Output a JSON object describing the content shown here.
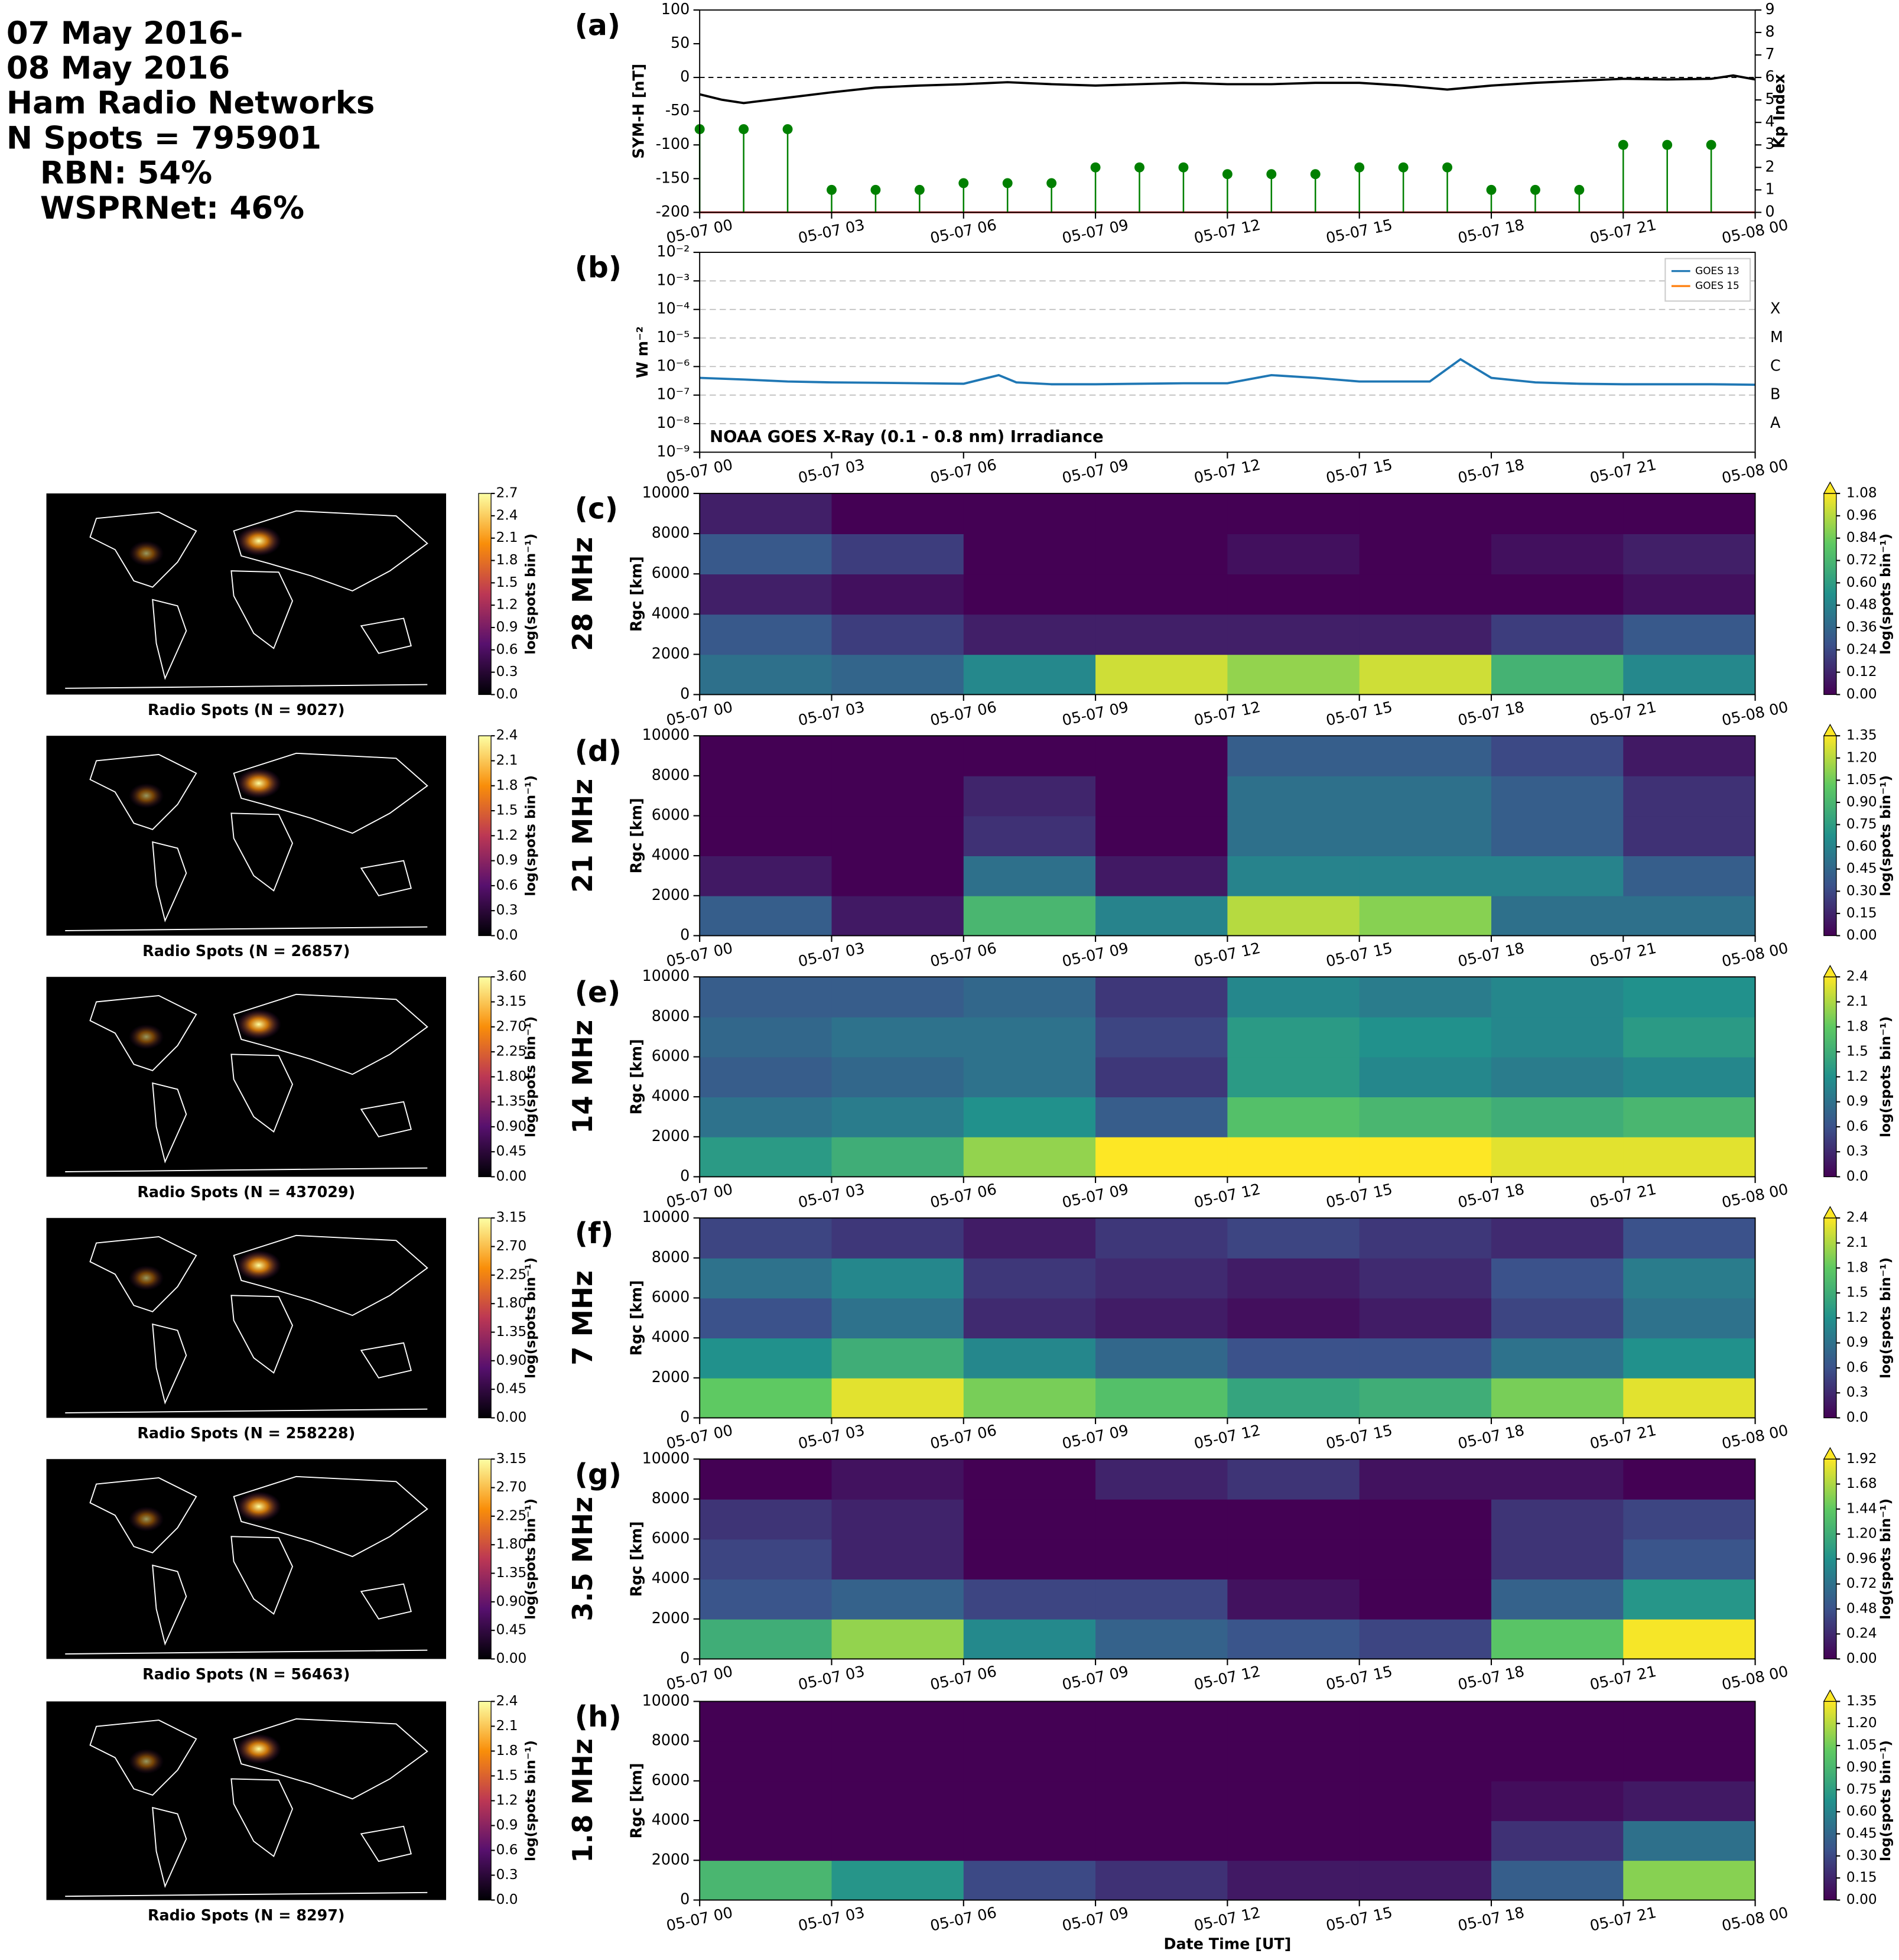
{
  "header": {
    "lines": [
      "07 May 2016-",
      "08 May 2016",
      "Ham Radio Networks",
      "N Spots = 795901",
      "RBN: 54%",
      "WSPRNet: 46%"
    ]
  },
  "time_axis": {
    "xlim": [
      0,
      24
    ],
    "xlabel": "Date Time [UT]",
    "xticks": [
      {
        "value": 0,
        "label": "05-07 00"
      },
      {
        "value": 3,
        "label": "05-07 03"
      },
      {
        "value": 6,
        "label": "05-07 06"
      },
      {
        "value": 9,
        "label": "05-07 09"
      },
      {
        "value": 12,
        "label": "05-07 12"
      },
      {
        "value": 15,
        "label": "05-07 15"
      },
      {
        "value": 18,
        "label": "05-07 18"
      },
      {
        "value": 21,
        "label": "05-07 21"
      },
      {
        "value": 24,
        "label": "05-08 00"
      }
    ]
  },
  "chart_data": [
    {
      "type": "line",
      "label": "(a)",
      "ylabel": "SYM-H [nT]",
      "y2label": "Kp Index",
      "ylim": [
        -200,
        100
      ],
      "yticks": [
        -200,
        -150,
        -100,
        -50,
        0,
        50,
        100
      ],
      "hline": 0,
      "y2lim": [
        0,
        9
      ],
      "y2ticks": [
        0,
        1,
        2,
        3,
        4,
        5,
        6,
        7,
        8,
        9
      ],
      "y2tick_colors": [
        "green",
        "green",
        "green",
        "green",
        "orange",
        "red",
        "red",
        "red",
        "red",
        "red"
      ],
      "series": [
        {
          "color": "#000000",
          "x": [
            0,
            0.5,
            1,
            2,
            3,
            4,
            5,
            6,
            7,
            8,
            9,
            10,
            11,
            12,
            13,
            14,
            15,
            16,
            17,
            18,
            19,
            20,
            21,
            22,
            23,
            23.5,
            24
          ],
          "values": [
            -25,
            -33,
            -38,
            -30,
            -22,
            -15,
            -12,
            -10,
            -7,
            -10,
            -12,
            -10,
            -8,
            -10,
            -10,
            -8,
            -8,
            -12,
            -18,
            -12,
            -8,
            -5,
            -2,
            -3,
            -2,
            3,
            -3
          ]
        },
        {
          "color": "#008000",
          "axis": "y2",
          "style": "stem",
          "x": [
            0,
            1,
            2,
            3,
            4,
            5,
            6,
            7,
            8,
            9,
            10,
            11,
            12,
            13,
            14,
            15,
            16,
            17,
            18,
            19,
            20,
            21,
            22,
            23
          ],
          "values": [
            3.7,
            3.7,
            3.7,
            1,
            1,
            1,
            1.3,
            1.3,
            1.3,
            2,
            2,
            2,
            1.7,
            1.7,
            1.7,
            2,
            2,
            2,
            1,
            1,
            1,
            3,
            3,
            3
          ]
        }
      ]
    },
    {
      "type": "line",
      "label": "(b)",
      "ylabel": "W m⁻²",
      "log": true,
      "grid": true,
      "legend": "upper right",
      "annotation": "NOAA GOES X-Ray (0.1 - 0.8 nm) Irradiance",
      "ylim": [
        1e-09,
        0.01
      ],
      "yticks": [
        {
          "value": 1e-09,
          "label": "10⁻⁹"
        },
        {
          "value": 1e-08,
          "label": "10⁻⁸"
        },
        {
          "value": 1e-07,
          "label": "10⁻⁷"
        },
        {
          "value": 1e-06,
          "label": "10⁻⁶"
        },
        {
          "value": 1e-05,
          "label": "10⁻⁵"
        },
        {
          "value": 0.0001,
          "label": "10⁻⁴"
        },
        {
          "value": 0.001,
          "label": "10⁻³"
        },
        {
          "value": 0.01,
          "label": "10⁻²"
        }
      ],
      "flare_classes": [
        {
          "value": 1e-08,
          "label": "A"
        },
        {
          "value": 1e-07,
          "label": "B"
        },
        {
          "value": 1e-06,
          "label": "C"
        },
        {
          "value": 1e-05,
          "label": "M"
        },
        {
          "value": 0.0001,
          "label": "X"
        }
      ],
      "series": [
        {
          "name": "GOES 13",
          "color": "#1f77b4",
          "x": [
            0,
            1,
            2,
            3,
            4,
            5,
            6,
            6.8,
            7.2,
            8,
            9,
            10,
            11,
            12,
            13,
            14,
            15,
            16,
            16.6,
            17.3,
            18,
            19,
            20,
            21,
            22,
            23,
            24
          ],
          "values": [
            4e-07,
            3.5e-07,
            3e-07,
            2.8e-07,
            2.7e-07,
            2.6e-07,
            2.5e-07,
            5e-07,
            2.8e-07,
            2.4e-07,
            2.4e-07,
            2.5e-07,
            2.6e-07,
            2.6e-07,
            5e-07,
            4e-07,
            3e-07,
            3e-07,
            3e-07,
            1.8e-06,
            4e-07,
            2.8e-07,
            2.5e-07,
            2.4e-07,
            2.4e-07,
            2.4e-07,
            2.3e-07
          ]
        },
        {
          "name": "GOES 15",
          "color": "#ff7f0e",
          "x": [
            0,
            1,
            2,
            3,
            4,
            5,
            6,
            6.8,
            7.2,
            8,
            9,
            10,
            11,
            12,
            13,
            14,
            15,
            16,
            16.6,
            17.3,
            18,
            19,
            20,
            21,
            22,
            23,
            24
          ],
          "values": [
            null,
            null,
            null,
            null,
            null,
            null,
            null,
            null,
            null,
            null,
            null,
            null,
            null,
            null,
            null,
            null,
            null,
            null,
            null,
            null,
            null,
            null,
            null,
            null,
            null,
            null,
            null
          ]
        }
      ]
    },
    {
      "type": "heatmap",
      "label": "(c)",
      "band": "28 MHz",
      "ylabel": "Rgc [km]",
      "ylim": [
        0,
        10000
      ],
      "yticks": [
        0,
        2000,
        4000,
        6000,
        8000,
        10000
      ],
      "xbins": [
        0,
        3,
        6,
        9,
        12,
        15,
        18,
        21,
        24
      ],
      "ybins": [
        0,
        2000,
        4000,
        6000,
        8000,
        10000
      ],
      "z": [
        [
          0.4,
          0.35,
          0.5,
          1.0,
          0.9,
          1.0,
          0.7,
          0.5
        ],
        [
          0.3,
          0.2,
          0.1,
          0.1,
          0.1,
          0.1,
          0.2,
          0.3
        ],
        [
          0.1,
          0.05,
          0,
          0,
          0,
          0,
          0,
          0.05
        ],
        [
          0.3,
          0.2,
          0,
          0,
          0.05,
          0,
          0.05,
          0.1
        ],
        [
          0.1,
          0,
          0,
          0,
          0,
          0,
          0,
          0
        ]
      ],
      "clim": [
        0,
        1.08
      ],
      "clabel": "log(spots bin⁻¹)",
      "cticks": [
        {
          "value": 0,
          "label": "0.00"
        },
        0.12,
        0.24,
        0.36,
        0.48,
        {
          "value": 0.6,
          "label": "0.60"
        },
        0.72,
        0.84,
        0.96,
        1.08
      ],
      "map": {
        "title": "Radio Spots (N = 9027)",
        "clim": [
          0,
          2.7
        ],
        "clabel": "log(spots bin⁻¹)",
        "cticks": [
          {
            "value": 0,
            "label": "0.0"
          },
          0.3,
          0.6,
          0.9,
          1.2,
          1.5,
          1.8,
          2.1,
          2.4,
          2.7
        ]
      }
    },
    {
      "type": "heatmap",
      "label": "(d)",
      "band": "21 MHz",
      "ylabel": "Rgc [km]",
      "ylim": [
        0,
        10000
      ],
      "yticks": [
        0,
        2000,
        4000,
        6000,
        8000,
        10000
      ],
      "xbins": [
        0,
        3,
        6,
        9,
        12,
        15,
        18,
        21,
        24
      ],
      "ybins": [
        0,
        2000,
        4000,
        6000,
        8000,
        10000
      ],
      "z": [
        [
          0.4,
          0.1,
          0.9,
          0.6,
          1.2,
          1.1,
          0.5,
          0.5
        ],
        [
          0.1,
          0,
          0.5,
          0.1,
          0.6,
          0.6,
          0.6,
          0.4
        ],
        [
          0,
          0,
          0.2,
          0,
          0.5,
          0.5,
          0.4,
          0.2
        ],
        [
          0,
          0,
          0.15,
          0,
          0.5,
          0.5,
          0.4,
          0.2
        ],
        [
          0,
          0,
          0,
          0,
          0.4,
          0.4,
          0.3,
          0.1
        ]
      ],
      "clim": [
        0,
        1.35
      ],
      "clabel": "log(spots bin⁻¹)",
      "cticks": [
        {
          "value": 0,
          "label": "0.00"
        },
        0.15,
        {
          "value": 0.3,
          "label": "0.30"
        },
        0.45,
        {
          "value": 0.6,
          "label": "0.60"
        },
        0.75,
        {
          "value": 0.9,
          "label": "0.90"
        },
        1.05,
        {
          "value": 1.2,
          "label": "1.20"
        },
        1.35
      ],
      "map": {
        "title": "Radio Spots (N = 26857)",
        "clim": [
          0,
          2.4
        ],
        "clabel": "log(spots bin⁻¹)",
        "cticks": [
          {
            "value": 0,
            "label": "0.0"
          },
          0.3,
          0.6,
          0.9,
          1.2,
          1.5,
          1.8,
          2.1,
          2.4
        ]
      }
    },
    {
      "type": "heatmap",
      "label": "(e)",
      "band": "14 MHz",
      "ylabel": "Rgc [km]",
      "ylim": [
        0,
        10000
      ],
      "yticks": [
        0,
        2000,
        4000,
        6000,
        8000,
        10000
      ],
      "xbins": [
        0,
        3,
        6,
        9,
        12,
        15,
        18,
        21,
        24
      ],
      "ybins": [
        0,
        2000,
        4000,
        6000,
        8000,
        10000
      ],
      "z": [
        [
          1.3,
          1.5,
          2.0,
          2.4,
          2.5,
          2.5,
          2.3,
          2.3
        ],
        [
          0.9,
          1.0,
          1.2,
          0.7,
          1.7,
          1.6,
          1.5,
          1.6
        ],
        [
          0.7,
          0.8,
          0.9,
          0.4,
          1.3,
          1.1,
          1.0,
          1.1
        ],
        [
          0.8,
          0.9,
          0.9,
          0.5,
          1.3,
          1.2,
          1.1,
          1.3
        ],
        [
          0.7,
          0.7,
          0.8,
          0.4,
          1.1,
          1.0,
          1.1,
          1.2
        ]
      ],
      "clim": [
        0,
        2.4
      ],
      "clabel": "log(spots bin⁻¹)",
      "cticks": [
        {
          "value": 0,
          "label": "0.0"
        },
        0.3,
        0.6,
        0.9,
        1.2,
        1.5,
        1.8,
        2.1,
        2.4
      ],
      "map": {
        "title": "Radio Spots (N = 437029)",
        "clim": [
          0,
          3.6
        ],
        "clabel": "log(spots bin⁻¹)",
        "cticks": [
          {
            "value": 0,
            "label": "0.00"
          },
          0.45,
          {
            "value": 0.9,
            "label": "0.90"
          },
          1.35,
          {
            "value": 1.8,
            "label": "1.80"
          },
          2.25,
          {
            "value": 2.7,
            "label": "2.70"
          },
          3.15,
          {
            "value": 3.6,
            "label": "3.60"
          }
        ]
      }
    },
    {
      "type": "heatmap",
      "label": "(f)",
      "band": "7 MHz",
      "ylabel": "Rgc [km]",
      "ylim": [
        0,
        10000
      ],
      "yticks": [
        0,
        2000,
        4000,
        6000,
        8000,
        10000
      ],
      "xbins": [
        0,
        3,
        6,
        9,
        12,
        15,
        18,
        21,
        24
      ],
      "ybins": [
        0,
        2000,
        4000,
        6000,
        8000,
        10000
      ],
      "z": [
        [
          1.8,
          2.3,
          1.9,
          1.7,
          1.4,
          1.5,
          1.9,
          2.3
        ],
        [
          1.2,
          1.5,
          1.1,
          0.8,
          0.6,
          0.6,
          0.9,
          1.2
        ],
        [
          0.6,
          0.9,
          0.3,
          0.2,
          0.1,
          0.2,
          0.5,
          0.9
        ],
        [
          0.9,
          1.1,
          0.4,
          0.3,
          0.2,
          0.3,
          0.6,
          1.0
        ],
        [
          0.5,
          0.4,
          0.2,
          0.4,
          0.5,
          0.4,
          0.3,
          0.6
        ]
      ],
      "clim": [
        0,
        2.4
      ],
      "clabel": "log(spots bin⁻¹)",
      "cticks": [
        {
          "value": 0,
          "label": "0.0"
        },
        0.3,
        0.6,
        0.9,
        1.2,
        1.5,
        1.8,
        2.1,
        2.4
      ],
      "map": {
        "title": "Radio Spots (N = 258228)",
        "clim": [
          0,
          3.15
        ],
        "clabel": "log(spots bin⁻¹)",
        "cticks": [
          {
            "value": 0,
            "label": "0.00"
          },
          0.45,
          {
            "value": 0.9,
            "label": "0.90"
          },
          1.35,
          {
            "value": 1.8,
            "label": "1.80"
          },
          2.25,
          {
            "value": 2.7,
            "label": "2.70"
          },
          3.15
        ]
      }
    },
    {
      "type": "heatmap",
      "label": "(g)",
      "band": "3.5 MHz",
      "ylabel": "Rgc [km]",
      "ylim": [
        0,
        10000
      ],
      "yticks": [
        0,
        2000,
        4000,
        6000,
        8000,
        10000
      ],
      "xbins": [
        0,
        3,
        6,
        9,
        12,
        15,
        18,
        21,
        24
      ],
      "ybins": [
        0,
        2000,
        4000,
        6000,
        8000,
        10000
      ],
      "z": [
        [
          1.2,
          1.6,
          0.9,
          0.6,
          0.5,
          0.4,
          1.4,
          1.9
        ],
        [
          0.5,
          0.6,
          0.4,
          0.4,
          0.1,
          0,
          0.6,
          1.0
        ],
        [
          0.4,
          0.2,
          0,
          0,
          0,
          0,
          0.3,
          0.5
        ],
        [
          0.3,
          0.2,
          0,
          0,
          0,
          0,
          0.3,
          0.4
        ],
        [
          0,
          0.1,
          0,
          0.2,
          0.3,
          0.1,
          0.1,
          0
        ]
      ],
      "clim": [
        0,
        1.92
      ],
      "clabel": "log(spots bin⁻¹)",
      "cticks": [
        {
          "value": 0,
          "label": "0.00"
        },
        0.24,
        0.48,
        0.72,
        0.96,
        {
          "value": 1.2,
          "label": "1.20"
        },
        1.44,
        1.68,
        1.92
      ],
      "map": {
        "title": "Radio Spots (N = 56463)",
        "clim": [
          0,
          3.15
        ],
        "clabel": "log(spots bin⁻¹)",
        "cticks": [
          {
            "value": 0,
            "label": "0.00"
          },
          0.45,
          {
            "value": 0.9,
            "label": "0.90"
          },
          1.35,
          {
            "value": 1.8,
            "label": "1.80"
          },
          2.25,
          {
            "value": 2.7,
            "label": "2.70"
          },
          3.15
        ]
      }
    },
    {
      "type": "heatmap",
      "label": "(h)",
      "band": "1.8 MHz",
      "ylabel": "Rgc [km]",
      "ylim": [
        0,
        10000
      ],
      "yticks": [
        0,
        2000,
        4000,
        6000,
        8000,
        10000
      ],
      "xbins": [
        0,
        3,
        6,
        9,
        12,
        15,
        18,
        21,
        24
      ],
      "ybins": [
        0,
        2000,
        4000,
        6000,
        8000,
        10000
      ],
      "z": [
        [
          0.9,
          0.7,
          0.3,
          0.2,
          0.1,
          0.1,
          0.4,
          1.1
        ],
        [
          0,
          0,
          0,
          0,
          0,
          0,
          0.2,
          0.5
        ],
        [
          0,
          0,
          0,
          0,
          0,
          0,
          0.05,
          0.1
        ],
        [
          0,
          0,
          0,
          0,
          0,
          0,
          0,
          0
        ],
        [
          0,
          0,
          0,
          0,
          0,
          0,
          0,
          0
        ]
      ],
      "clim": [
        0,
        1.35
      ],
      "clabel": "log(spots bin⁻¹)",
      "cticks": [
        {
          "value": 0,
          "label": "0.00"
        },
        0.15,
        {
          "value": 0.3,
          "label": "0.30"
        },
        0.45,
        {
          "value": 0.6,
          "label": "0.60"
        },
        0.75,
        {
          "value": 0.9,
          "label": "0.90"
        },
        1.05,
        {
          "value": 1.2,
          "label": "1.20"
        },
        1.35
      ],
      "map": {
        "title": "Radio Spots (N = 8297)",
        "clim": [
          0,
          2.4
        ],
        "clabel": "log(spots bin⁻¹)",
        "cticks": [
          {
            "value": 0,
            "label": "0.0"
          },
          0.3,
          0.6,
          0.9,
          1.2,
          1.5,
          1.8,
          2.1,
          2.4
        ]
      }
    }
  ]
}
